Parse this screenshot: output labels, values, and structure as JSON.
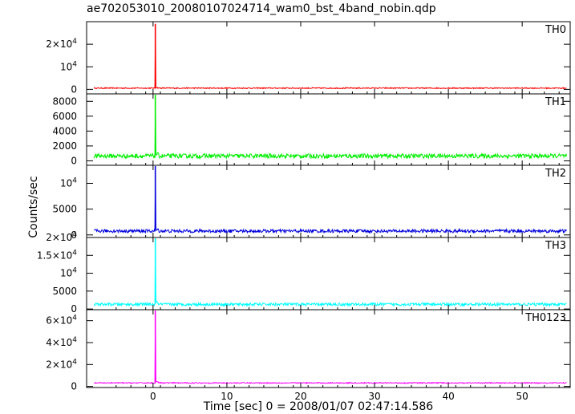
{
  "title": "ae702053010_20080107024714_wam0_bst_4band_nobin.qdp",
  "chart_data": {
    "type": "line",
    "title": "ae702053010_20080107024714_wam0_bst_4band_nobin.qdp",
    "xlabel": "Time [sec] 0 = 2008/01/07 02:47:14.586",
    "ylabel": "Counts/sec",
    "xlim": [
      -9,
      56.5
    ],
    "x_ticks": [
      0,
      10,
      20,
      30,
      40,
      50
    ],
    "x_tick_labels": [
      "0",
      "10",
      "20",
      "30",
      "40",
      "50"
    ],
    "data_x_range": [
      -8,
      56
    ],
    "panels": [
      {
        "name": "TH0",
        "color": "#ff0000",
        "ylim": [
          -2000,
          30000
        ],
        "y_ticks": [
          0,
          10000,
          20000
        ],
        "y_tick_labels": [
          "0",
          "10^4",
          "2×10^4"
        ],
        "background": 550,
        "noise": 250,
        "peak": 29000,
        "peak_time": 0.3
      },
      {
        "name": "TH1",
        "color": "#00ee00",
        "ylim": [
          -600,
          9000
        ],
        "y_ticks": [
          0,
          2000,
          4000,
          6000,
          8000
        ],
        "y_tick_labels": [
          "0",
          "2000",
          "4000",
          "6000",
          "8000"
        ],
        "background": 650,
        "noise": 300,
        "peak": 8900,
        "peak_time": 0.3
      },
      {
        "name": "TH2",
        "color": "#0000dd",
        "ylim": [
          -500,
          13500
        ],
        "y_ticks": [
          0,
          5000,
          10000
        ],
        "y_tick_labels": [
          "0",
          "5000",
          "10^4"
        ],
        "background": 750,
        "noise": 320,
        "peak": 13500,
        "peak_time": 0.3
      },
      {
        "name": "TH3",
        "color": "#00ffff",
        "ylim": [
          -200,
          20000
        ],
        "y_ticks": [
          0,
          5000,
          10000,
          15000,
          20000
        ],
        "y_tick_labels": [
          "0",
          "5000",
          "10^4",
          "1.5×10^4",
          "2×10^4"
        ],
        "background": 1300,
        "noise": 400,
        "peak": 20000,
        "peak_time": 0.3
      },
      {
        "name": "TH0123",
        "color": "#ff00ff",
        "ylim": [
          -1000,
          70000
        ],
        "y_ticks": [
          0,
          20000,
          40000,
          60000
        ],
        "y_tick_labels": [
          "0",
          "2×10^4",
          "4×10^4",
          "6×10^4"
        ],
        "background": 3200,
        "noise": 500,
        "peak": 70000,
        "peak_time": 0.3
      }
    ]
  }
}
